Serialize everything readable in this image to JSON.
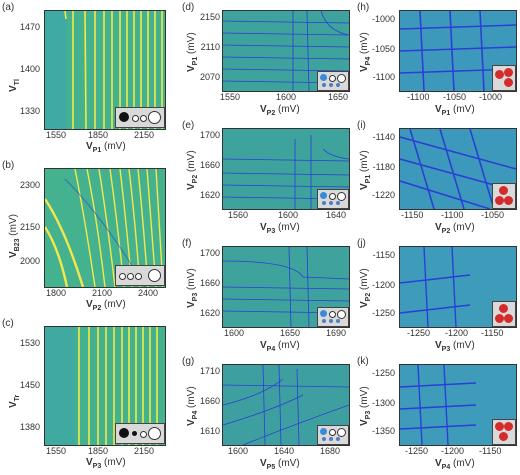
{
  "panels": [
    {
      "id": "a",
      "label": "(a)",
      "ylabel": "V",
      "ysub": "Tl",
      "yunit": " (mV)",
      "xlabel": "V",
      "xsub": "P1",
      "xunit": " (mV)",
      "yticks": [
        "1470",
        "1400",
        "1330"
      ],
      "xticks": [
        "1550",
        "1850",
        "2150"
      ]
    },
    {
      "id": "b",
      "label": "(b)",
      "ylabel": "V",
      "ysub": "B23",
      "yunit": " (mV)",
      "xlabel": "V",
      "xsub": "P2",
      "xunit": " (mV)",
      "yticks": [
        "2300",
        "2150",
        "2000"
      ],
      "xticks": [
        "1800",
        "2100",
        "2400"
      ]
    },
    {
      "id": "c",
      "label": "(c)",
      "ylabel": "V",
      "ysub": "Tr",
      "yunit": " (mV)",
      "xlabel": "V",
      "xsub": "P3",
      "xunit": " (mV)",
      "yticks": [
        "1530",
        "1450",
        "1380"
      ],
      "xticks": [
        "1550",
        "1850",
        "2150"
      ]
    },
    {
      "id": "d",
      "label": "(d)",
      "ylabel": "V",
      "ysub": "P1",
      "yunit": " (mV)",
      "xlabel": "V",
      "xsub": "P2",
      "xunit": " (mV)",
      "yticks": [
        "2150",
        "2110",
        "2070"
      ],
      "xticks": [
        "1550",
        "1600",
        "1650"
      ]
    },
    {
      "id": "e",
      "label": "(e)",
      "ylabel": "V",
      "ysub": "P2",
      "yunit": " (mV)",
      "xlabel": "V",
      "xsub": "P3",
      "xunit": " (mV)",
      "yticks": [
        "1700",
        "1660",
        "1620"
      ],
      "xticks": [
        "1560",
        "1600",
        "1640"
      ]
    },
    {
      "id": "f",
      "label": "(f)",
      "ylabel": "V",
      "ysub": "P3",
      "yunit": " (mV)",
      "xlabel": "V",
      "xsub": "P4",
      "xunit": " (mV)",
      "yticks": [
        "1700",
        "1660",
        "1620"
      ],
      "xticks": [
        "1600",
        "1650",
        "1690"
      ]
    },
    {
      "id": "g",
      "label": "(g)",
      "ylabel": "V",
      "ysub": "P4",
      "yunit": " (mV)",
      "xlabel": "V",
      "xsub": "P5",
      "xunit": " (mV)",
      "yticks": [
        "1710",
        "1660",
        "1610"
      ],
      "xticks": [
        "1600",
        "1640",
        "1680"
      ]
    },
    {
      "id": "h",
      "label": "(h)",
      "ylabel": "V",
      "ysub": "P4",
      "yunit": " (mV)",
      "xlabel": "V",
      "xsub": "P1",
      "xunit": " (mV)",
      "yticks": [
        "-1000",
        "-1050",
        "-1100"
      ],
      "xticks": [
        "-1100",
        "-1050",
        "-1000"
      ]
    },
    {
      "id": "i",
      "label": "(i)",
      "ylabel": "V",
      "ysub": "P1",
      "yunit": " (mV)",
      "xlabel": "V",
      "xsub": "P2",
      "xunit": " (mV)",
      "yticks": [
        "-1140",
        "-1180",
        "-1220"
      ],
      "xticks": [
        "-1150",
        "-1100",
        "-1050"
      ]
    },
    {
      "id": "j",
      "label": "(j)",
      "ylabel": "V",
      "ysub": "P2",
      "yunit": " (mV)",
      "xlabel": "V",
      "xsub": "P3",
      "xunit": " (mV)",
      "yticks": [
        "-1150",
        "-1200",
        "-1250"
      ],
      "xticks": [
        "-1250",
        "-1200",
        "-1150"
      ]
    },
    {
      "id": "k",
      "label": "(k)",
      "ylabel": "V",
      "ysub": "P3",
      "yunit": " (mV)",
      "xlabel": "V",
      "xsub": "P4",
      "xunit": " (mV)",
      "yticks": [
        "-1250",
        "-1300",
        "-1350"
      ],
      "xticks": [
        "-1250",
        "-1200",
        "-1150"
      ]
    }
  ],
  "colors": {
    "background_green": "#3fae8c",
    "background_blue": "#3a7fd0",
    "line_yellow": "#f2e84a",
    "line_blue": "#2a3fd6",
    "dot_red": "#d42b2b",
    "inset_gray": "#d9d9d9"
  }
}
